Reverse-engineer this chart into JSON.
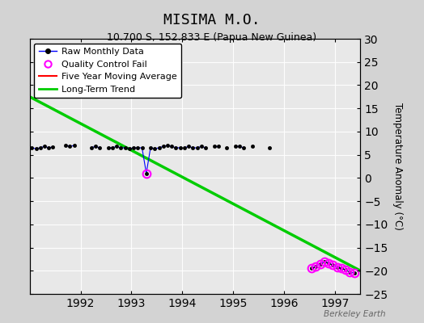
{
  "title": "MISIMA M.O.",
  "subtitle": "10.700 S, 152.833 E (Papua New Guinea)",
  "ylabel_right": "Temperature Anomaly (°C)",
  "watermark": "Berkeley Earth",
  "background_color": "#d3d3d3",
  "plot_bg_color": "#e8e8e8",
  "ylim": [
    -25,
    30
  ],
  "xlim_start": 1991.0,
  "xlim_end": 1997.5,
  "yticks": [
    -25,
    -20,
    -15,
    -10,
    -5,
    0,
    5,
    10,
    15,
    20,
    25,
    30
  ],
  "xticks": [
    1992,
    1993,
    1994,
    1995,
    1996,
    1997
  ],
  "segments": [
    {
      "x": [
        1991.042,
        1991.125,
        1991.208,
        1991.292,
        1991.375,
        1991.458
      ],
      "y": [
        6.5,
        6.3,
        6.5,
        6.8,
        6.5,
        6.7
      ]
    },
    {
      "x": [
        1991.708,
        1991.792,
        1991.875
      ],
      "y": [
        7.0,
        6.8,
        7.0
      ]
    },
    {
      "x": [
        1992.208,
        1992.292,
        1992.375
      ],
      "y": [
        6.5,
        6.8,
        6.5
      ]
    },
    {
      "x": [
        1992.542,
        1992.625,
        1992.708,
        1992.792,
        1992.875,
        1992.958,
        1993.042,
        1993.125,
        1993.208,
        1993.292,
        1993.375,
        1993.458,
        1993.542,
        1993.625,
        1993.708,
        1993.792,
        1993.875,
        1993.958
      ],
      "y": [
        6.5,
        6.5,
        6.8,
        6.5,
        6.5,
        6.3,
        6.5,
        6.5,
        6.5,
        1.0,
        6.5,
        6.3,
        6.5,
        6.8,
        7.0,
        6.8,
        6.5,
        6.5
      ]
    },
    {
      "x": [
        1994.042,
        1994.125,
        1994.208,
        1994.292,
        1994.375,
        1994.458
      ],
      "y": [
        6.5,
        6.8,
        6.5,
        6.5,
        6.8,
        6.5
      ]
    },
    {
      "x": [
        1994.625,
        1994.708
      ],
      "y": [
        6.8,
        6.8
      ]
    },
    {
      "x": [
        1994.875
      ],
      "y": [
        6.5
      ]
    },
    {
      "x": [
        1995.042,
        1995.125,
        1995.208
      ],
      "y": [
        6.8,
        6.8,
        6.5
      ]
    },
    {
      "x": [
        1995.375
      ],
      "y": [
        6.8
      ]
    },
    {
      "x": [
        1995.708
      ],
      "y": [
        6.5
      ]
    },
    {
      "x": [
        1996.542,
        1996.625,
        1996.708,
        1996.792,
        1996.875,
        1996.958,
        1997.042,
        1997.125,
        1997.208,
        1997.292,
        1997.375
      ],
      "y": [
        -19.5,
        -19.0,
        -18.5,
        -18.0,
        -18.3,
        -18.8,
        -19.2,
        -19.5,
        -19.8,
        -20.3,
        -20.5
      ]
    }
  ],
  "qc_fail_x": [
    1993.292,
    1996.542,
    1996.625,
    1996.708,
    1996.792,
    1996.875,
    1996.958,
    1997.042,
    1997.125,
    1997.208,
    1997.292,
    1997.375
  ],
  "qc_fail_y": [
    1.0,
    -19.5,
    -19.0,
    -18.5,
    -18.0,
    -18.3,
    -18.8,
    -19.2,
    -19.5,
    -19.8,
    -20.3,
    -20.5
  ],
  "trend_x": [
    1991.0,
    1997.5
  ],
  "trend_y": [
    17.5,
    -20.0
  ],
  "raw_color": "#0000ff",
  "raw_marker_color": "#000000",
  "qc_color": "#ff00ff",
  "trend_color": "#00cc00",
  "moving_avg_color": "#ff0000"
}
